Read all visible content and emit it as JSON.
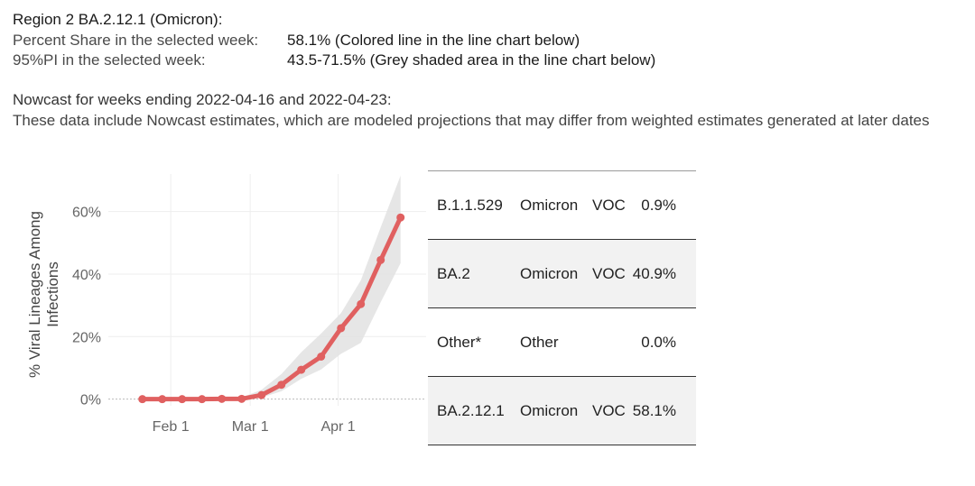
{
  "header": {
    "title": "Region 2  BA.2.12.1 (Omicron):",
    "share_label": "Percent Share in the selected week:",
    "share_value": "58.1%  (Colored line in the line chart below)",
    "pi_label": "95%PI in the selected week:",
    "pi_value": "43.5-71.5% (Grey shaded area in the line chart below)"
  },
  "nowcast": {
    "heading": "Nowcast for weeks ending 2022-04-16 and 2022-04-23:",
    "note": "These data include Nowcast estimates, which are modeled projections that may differ from weighted estimates generated at later dates"
  },
  "colors": {
    "line": "#e06060",
    "band": "#e2e2e2",
    "grid": "#eeeeee",
    "zero_line": "#bbbbbb",
    "axis_text": "#666666"
  },
  "chart_data": {
    "type": "line",
    "ylabel": "% Viral Lineages Among Infections",
    "ylim": [
      -5,
      72
    ],
    "yticks": [
      0,
      20,
      40,
      60
    ],
    "ytick_labels": [
      "0%",
      "20%",
      "40%",
      "60%"
    ],
    "xticks": [
      "Feb 1",
      "Mar 1",
      "Apr 1"
    ],
    "xtick_dates": [
      "2022-02-01",
      "2022-03-01",
      "2022-04-01"
    ],
    "xlim": [
      "2022-01-10",
      "2022-05-02"
    ],
    "grid": true,
    "series": [
      {
        "x": [
          "2022-01-22",
          "2022-01-29",
          "2022-02-05",
          "2022-02-12",
          "2022-02-19",
          "2022-02-26",
          "2022-03-05",
          "2022-03-12",
          "2022-03-19",
          "2022-03-26",
          "2022-04-02",
          "2022-04-09",
          "2022-04-16",
          "2022-04-23"
        ],
        "y": [
          0,
          0,
          0,
          0,
          0.1,
          0.1,
          1.3,
          4.6,
          9.4,
          13.6,
          22.7,
          30.4,
          44.5,
          58.1
        ],
        "pi_low": [
          0,
          0,
          0,
          0,
          0,
          0,
          0.5,
          2.5,
          6.5,
          9.5,
          14.5,
          18.0,
          31.0,
          43.5
        ],
        "pi_high": [
          0,
          0,
          0,
          0,
          0.3,
          0.5,
          3.0,
          8.0,
          15.0,
          21.0,
          27.5,
          38.0,
          55.0,
          71.5
        ]
      }
    ]
  },
  "table": {
    "rows": [
      {
        "lineage": "B.1.1.529",
        "who": "Omicron",
        "type": "VOC",
        "share": "0.9%"
      },
      {
        "lineage": "BA.2",
        "who": "Omicron",
        "type": "VOC",
        "share": "40.9%"
      },
      {
        "lineage": "Other*",
        "who": "Other",
        "type": "",
        "share": "0.0%"
      },
      {
        "lineage": "BA.2.12.1",
        "who": "Omicron",
        "type": "VOC",
        "share": "58.1%"
      }
    ]
  }
}
